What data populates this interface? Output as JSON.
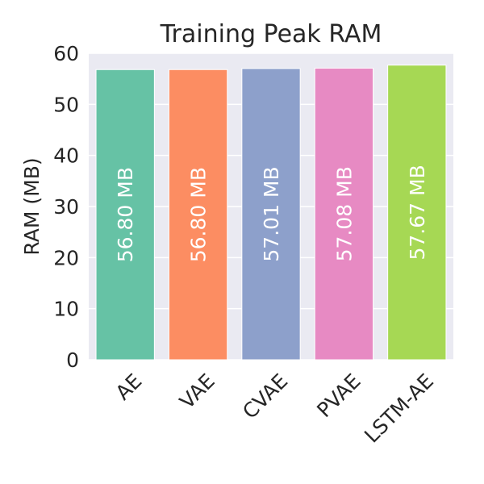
{
  "chart_data": {
    "type": "bar",
    "title": "Training Peak RAM",
    "xlabel": "",
    "ylabel": "RAM (MB)",
    "ylim": [
      0,
      60
    ],
    "yticks": [
      0,
      10,
      20,
      30,
      40,
      50,
      60
    ],
    "categories": [
      "AE",
      "VAE",
      "CVAE",
      "PVAE",
      "LSTM-AE"
    ],
    "values": [
      56.8,
      56.8,
      57.01,
      57.08,
      57.67
    ],
    "data_labels": [
      "56.80 MB",
      "56.80 MB",
      "57.01 MB",
      "57.08 MB",
      "57.67 MB"
    ],
    "colors": [
      "#66c2a5",
      "#fc8d62",
      "#8da0cb",
      "#e78ac3",
      "#a6d854"
    ],
    "background": "#eaeaf2",
    "grid": true,
    "legend": "none"
  }
}
